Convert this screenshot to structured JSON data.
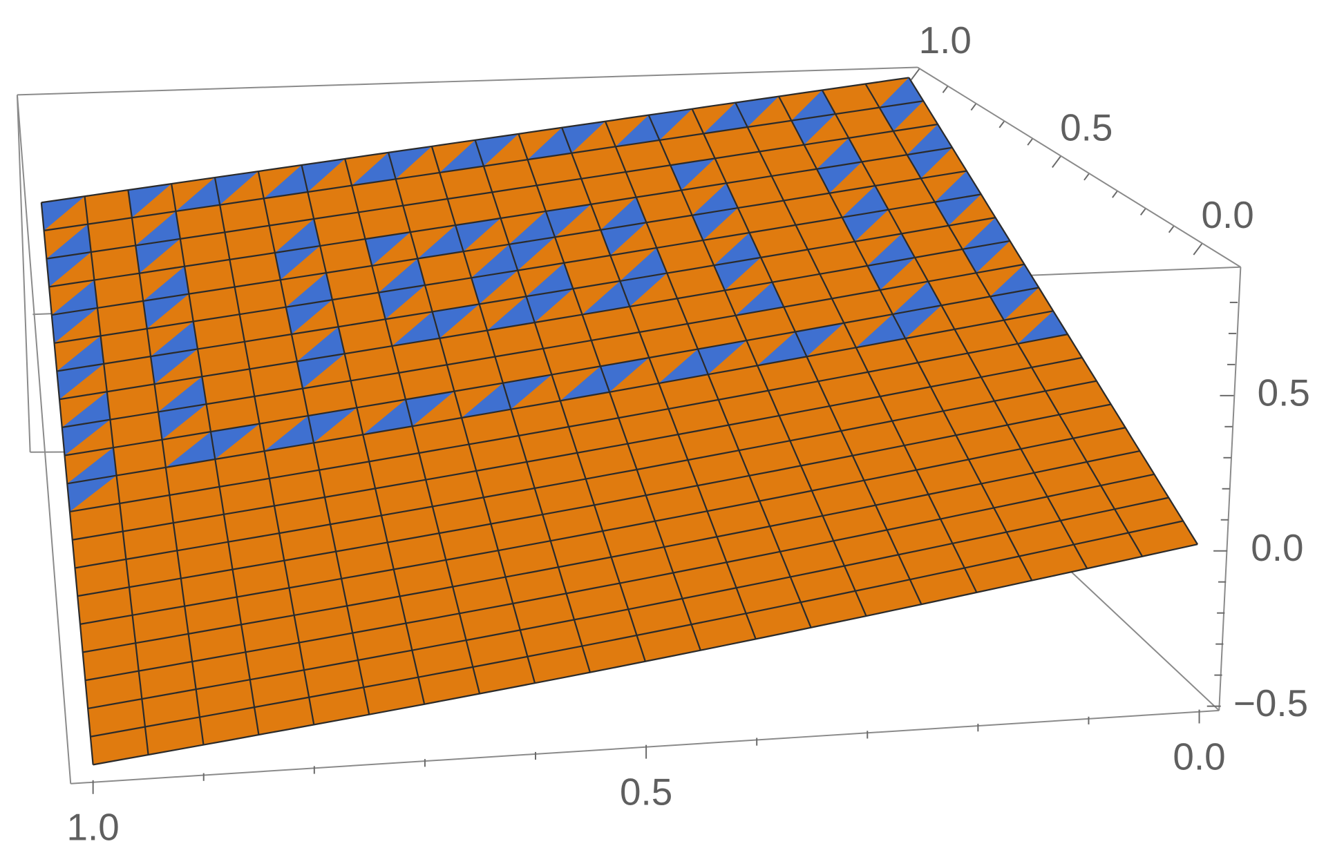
{
  "chart_data": {
    "type": "surface3d",
    "xlim": [
      0,
      1
    ],
    "xticks": [
      {
        "value": 0,
        "label": "0.0"
      },
      {
        "value": 0.5,
        "label": "0.5"
      },
      {
        "value": 1,
        "label": "1.0"
      }
    ],
    "xminorticks": [
      0.1,
      0.2,
      0.3,
      0.4,
      0.6,
      0.7,
      0.8,
      0.9
    ],
    "ylim": [
      0,
      1
    ],
    "yticks": [
      {
        "value": 0,
        "label": "0.0"
      },
      {
        "value": 0.5,
        "label": "0.5"
      },
      {
        "value": 1,
        "label": "1.0"
      }
    ],
    "yminorticks": [
      0.1,
      0.2,
      0.3,
      0.4,
      0.6,
      0.7,
      0.8,
      0.9
    ],
    "zlim": [
      -0.5,
      0.9
    ],
    "zticks": [
      {
        "value": -0.5,
        "label": "−0.5"
      },
      {
        "value": 0,
        "label": "0.0"
      },
      {
        "value": 0.5,
        "label": "0.5"
      }
    ],
    "zminorticks": [
      -0.4,
      -0.3,
      -0.2,
      -0.1,
      0.1,
      0.2,
      0.3,
      0.4,
      0.6,
      0.7,
      0.8
    ],
    "surface_color": "#e07b0f",
    "pattern_color": "#3f70d0",
    "mesh_color": "#2b2b2b"
  }
}
